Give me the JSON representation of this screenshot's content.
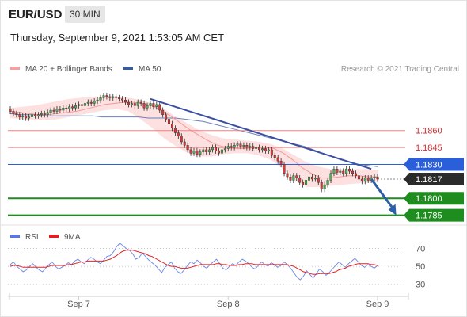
{
  "header": {
    "symbol": "EUR/USD",
    "timeframe": "30 MIN",
    "datetime": "Thursday, September 9, 2021 1:53:05 AM CET"
  },
  "chart_data": [
    {
      "type": "candlestick",
      "legend": [
        {
          "label": "MA 20 + Bollinger Bands",
          "color": "#f4a0a0"
        },
        {
          "label": "MA 50",
          "color": "#3a5a9a"
        }
      ],
      "credit": "Research © 2021 Trading Central",
      "ylim": [
        1.1777,
        1.1911
      ],
      "x_ticks": [
        {
          "label": "Sep 7",
          "index": 22
        },
        {
          "label": "Sep 8",
          "index": 70
        },
        {
          "label": "Sep 9",
          "index": 118
        }
      ],
      "candles": [
        [
          1.1879,
          1.1877
        ],
        [
          1.1877,
          1.1875
        ],
        [
          1.1875,
          1.1874
        ],
        [
          1.1874,
          1.1872
        ],
        [
          1.1872,
          1.1873
        ],
        [
          1.1873,
          1.1871
        ],
        [
          1.1871,
          1.1872
        ],
        [
          1.1872,
          1.1874
        ],
        [
          1.1874,
          1.1873
        ],
        [
          1.1873,
          1.1874
        ],
        [
          1.1874,
          1.1875
        ],
        [
          1.1875,
          1.1874
        ],
        [
          1.1874,
          1.1876
        ],
        [
          1.1876,
          1.1878
        ],
        [
          1.1878,
          1.1877
        ],
        [
          1.1877,
          1.1879
        ],
        [
          1.1879,
          1.1878
        ],
        [
          1.1878,
          1.188
        ],
        [
          1.188,
          1.1879
        ],
        [
          1.1879,
          1.1881
        ],
        [
          1.1881,
          1.188
        ],
        [
          1.188,
          1.1882
        ],
        [
          1.1882,
          1.1883
        ],
        [
          1.1883,
          1.1882
        ],
        [
          1.1882,
          1.1884
        ],
        [
          1.1884,
          1.1885
        ],
        [
          1.1885,
          1.1884
        ],
        [
          1.1884,
          1.1886
        ],
        [
          1.1886,
          1.1887
        ],
        [
          1.1887,
          1.1889
        ],
        [
          1.1889,
          1.1891
        ],
        [
          1.1891,
          1.189
        ],
        [
          1.189,
          1.1889
        ],
        [
          1.1889,
          1.189
        ],
        [
          1.189,
          1.1889
        ],
        [
          1.1889,
          1.1888
        ],
        [
          1.1888,
          1.1887
        ],
        [
          1.1887,
          1.1885
        ],
        [
          1.1885,
          1.1883
        ],
        [
          1.1883,
          1.1884
        ],
        [
          1.1884,
          1.1882
        ],
        [
          1.1882,
          1.1885
        ],
        [
          1.1885,
          1.1884
        ],
        [
          1.1884,
          1.188
        ],
        [
          1.188,
          1.1882
        ],
        [
          1.1882,
          1.1884
        ],
        [
          1.1884,
          1.1881
        ],
        [
          1.1881,
          1.1883
        ],
        [
          1.1883,
          1.1878
        ],
        [
          1.1878,
          1.1874
        ],
        [
          1.1874,
          1.187
        ],
        [
          1.187,
          1.1866
        ],
        [
          1.1866,
          1.1862
        ],
        [
          1.1862,
          1.1858
        ],
        [
          1.1858,
          1.1855
        ],
        [
          1.1855,
          1.185
        ],
        [
          1.185,
          1.1847
        ],
        [
          1.1847,
          1.1843
        ],
        [
          1.1843,
          1.184
        ],
        [
          1.184,
          1.1842
        ],
        [
          1.1842,
          1.1839
        ],
        [
          1.1839,
          1.1841
        ],
        [
          1.1841,
          1.1843
        ],
        [
          1.1843,
          1.1841
        ],
        [
          1.1841,
          1.1843
        ],
        [
          1.1843,
          1.1845
        ],
        [
          1.1845,
          1.1842
        ],
        [
          1.1842,
          1.184
        ],
        [
          1.184,
          1.1843
        ],
        [
          1.1843,
          1.1844
        ],
        [
          1.1844,
          1.1846
        ],
        [
          1.1846,
          1.1845
        ],
        [
          1.1845,
          1.1847
        ],
        [
          1.1847,
          1.1848
        ],
        [
          1.1848,
          1.1846
        ],
        [
          1.1846,
          1.1847
        ],
        [
          1.1847,
          1.1845
        ],
        [
          1.1845,
          1.1846
        ],
        [
          1.1846,
          1.1844
        ],
        [
          1.1844,
          1.1845
        ],
        [
          1.1845,
          1.1843
        ],
        [
          1.1843,
          1.1844
        ],
        [
          1.1844,
          1.1842
        ],
        [
          1.1842,
          1.1843
        ],
        [
          1.1843,
          1.1838
        ],
        [
          1.1838,
          1.1836
        ],
        [
          1.1836,
          1.1833
        ],
        [
          1.1833,
          1.183
        ],
        [
          1.183,
          1.1822
        ],
        [
          1.1822,
          1.1819
        ],
        [
          1.1819,
          1.1816
        ],
        [
          1.1816,
          1.182
        ],
        [
          1.182,
          1.1818
        ],
        [
          1.1818,
          1.1814
        ],
        [
          1.1814,
          1.1812
        ],
        [
          1.1812,
          1.1816
        ],
        [
          1.1816,
          1.1819
        ],
        [
          1.1819,
          1.1817
        ],
        [
          1.1817,
          1.1818
        ],
        [
          1.1818,
          1.1814
        ],
        [
          1.1814,
          1.1808
        ],
        [
          1.1808,
          1.1812
        ],
        [
          1.1812,
          1.1816
        ],
        [
          1.1816,
          1.1822
        ],
        [
          1.1822,
          1.1826
        ],
        [
          1.1826,
          1.1823
        ],
        [
          1.1823,
          1.1824
        ],
        [
          1.1824,
          1.1822
        ],
        [
          1.1822,
          1.1826
        ],
        [
          1.1826,
          1.1824
        ],
        [
          1.1824,
          1.1822
        ],
        [
          1.1822,
          1.182
        ],
        [
          1.182,
          1.1817
        ],
        [
          1.1817,
          1.1815
        ],
        [
          1.1815,
          1.1818
        ],
        [
          1.1818,
          1.1816
        ],
        [
          1.1816,
          1.1818
        ],
        [
          1.1818,
          1.1819
        ],
        [
          1.1819,
          1.1817
        ]
      ],
      "ma50": [
        1.1875,
        1.1874,
        1.1874,
        1.1874,
        1.1873,
        1.1873,
        1.1873,
        1.1873,
        1.1873,
        1.1873,
        1.1872,
        1.1872,
        1.1872,
        1.1872,
        1.1872,
        1.1871,
        1.1871,
        1.1871,
        1.1871,
        1.187,
        1.1869,
        1.1868,
        1.1866,
        1.1864,
        1.1862,
        1.186,
        1.1858,
        1.1856,
        1.1854,
        1.1852,
        1.185,
        1.1848,
        1.1846,
        1.1843,
        1.184,
        1.1837,
        1.1834,
        1.1832,
        1.183,
        1.1829,
        1.1828
      ],
      "ma20": [
        1.1877,
        1.1876,
        1.1875,
        1.1874,
        1.1874,
        1.1875,
        1.1876,
        1.1877,
        1.1879,
        1.1881,
        1.1883,
        1.1884,
        1.1885,
        1.1885,
        1.1884,
        1.1882,
        1.1878,
        1.1873,
        1.1867,
        1.1861,
        1.1856,
        1.1851,
        1.1847,
        1.1845,
        1.1844,
        1.1844,
        1.1845,
        1.1845,
        1.1844,
        1.184,
        1.1834,
        1.1827,
        1.1822,
        1.1818,
        1.1818,
        1.1819,
        1.182,
        1.182,
        1.1819,
        1.1819
      ],
      "bollinger_upper": [
        1.188,
        1.1881,
        1.1882,
        1.1884,
        1.1886,
        1.1888,
        1.1889,
        1.189,
        1.189,
        1.189,
        1.1889,
        1.1887,
        1.1884,
        1.1879,
        1.1872,
        1.1866,
        1.186,
        1.1856,
        1.1853,
        1.1852,
        1.1851,
        1.185,
        1.1848,
        1.1844,
        1.1838,
        1.1832,
        1.1828,
        1.1826,
        1.1826,
        1.1826,
        1.1826,
        1.1825
      ],
      "bollinger_lower": [
        1.1871,
        1.187,
        1.1869,
        1.1869,
        1.187,
        1.1872,
        1.1874,
        1.1876,
        1.1878,
        1.1879,
        1.1877,
        1.187,
        1.1862,
        1.1853,
        1.1846,
        1.184,
        1.1837,
        1.1837,
        1.1839,
        1.184,
        1.184,
        1.1838,
        1.1834,
        1.1826,
        1.1816,
        1.181,
        1.181,
        1.1811,
        1.1812,
        1.1813,
        1.1814,
        1.1814
      ],
      "trendline": {
        "from": {
          "index": 45,
          "price": 1.1888
        },
        "to": {
          "index": 116,
          "price": 1.1826
        }
      },
      "levels": [
        {
          "value": 1.186,
          "label": "1.1860",
          "kind": "resistance",
          "color": "#f08080"
        },
        {
          "value": 1.1845,
          "label": "1.1845",
          "kind": "resistance",
          "color": "#f08080"
        },
        {
          "value": 1.183,
          "label": "1.1830",
          "kind": "pivot",
          "color": "#2b5fd9"
        },
        {
          "value": 1.1817,
          "label": "1.1817",
          "kind": "current",
          "color": "#2b2b2b"
        },
        {
          "value": 1.18,
          "label": "1.1800",
          "kind": "support",
          "color": "#1e8c1e"
        },
        {
          "value": 1.1785,
          "label": "1.1785",
          "kind": "support",
          "color": "#1e8c1e"
        }
      ],
      "arrow": {
        "from": {
          "index": 116,
          "price": 1.1817
        },
        "to": {
          "index": 124,
          "price": 1.1785
        }
      }
    },
    {
      "type": "line",
      "legend": [
        {
          "label": "RSI",
          "color": "#5a78e0"
        },
        {
          "label": "9MA",
          "color": "#e02020"
        }
      ],
      "ylim": [
        20,
        82
      ],
      "y_ticks": [
        {
          "label": "70",
          "value": 70
        },
        {
          "label": "50",
          "value": 50
        },
        {
          "label": "30",
          "value": 30
        }
      ],
      "rsi": [
        52,
        55,
        50,
        47,
        44,
        46,
        50,
        53,
        49,
        46,
        44,
        48,
        52,
        55,
        50,
        47,
        49,
        51,
        54,
        52,
        56,
        58,
        55,
        53,
        57,
        60,
        58,
        55,
        53,
        57,
        61,
        62,
        66,
        72,
        76,
        73,
        70,
        68,
        64,
        58,
        60,
        65,
        61,
        57,
        54,
        51,
        47,
        43,
        49,
        52,
        55,
        48,
        44,
        42,
        46,
        51,
        55,
        53,
        57,
        54,
        50,
        48,
        52,
        55,
        58,
        53,
        48,
        46,
        50,
        53,
        51,
        55,
        58,
        56,
        53,
        49,
        47,
        51,
        55,
        52,
        50,
        54,
        52,
        49,
        51,
        55,
        52,
        48,
        43,
        38,
        35,
        39,
        45,
        41,
        37,
        42,
        47,
        44,
        40,
        43,
        47,
        51,
        55,
        52,
        49,
        53,
        56,
        59,
        55,
        51,
        49,
        52,
        50,
        48,
        51
      ],
      "ma9": [
        50,
        51,
        51,
        50,
        49,
        49,
        49,
        49,
        49,
        49,
        49,
        49,
        50,
        51,
        51,
        51,
        51,
        51,
        52,
        52,
        53,
        54,
        55,
        55,
        56,
        56,
        56,
        56,
        56,
        56,
        57,
        58,
        60,
        62,
        65,
        67,
        68,
        68,
        68,
        67,
        66,
        65,
        64,
        62,
        61,
        59,
        57,
        55,
        53,
        51,
        50,
        50,
        49,
        48,
        48,
        48,
        49,
        50,
        51,
        52,
        52,
        52,
        52,
        52,
        53,
        53,
        52,
        52,
        51,
        51,
        51,
        52,
        52,
        53,
        53,
        53,
        52,
        52,
        52,
        52,
        52,
        52,
        52,
        52,
        52,
        52,
        52,
        51,
        50,
        48,
        46,
        44,
        43,
        42,
        41,
        41,
        42,
        42,
        42,
        42,
        43,
        44,
        46,
        47,
        48,
        50,
        51,
        52,
        53,
        53,
        53,
        53,
        52,
        52,
        51
      ]
    }
  ]
}
